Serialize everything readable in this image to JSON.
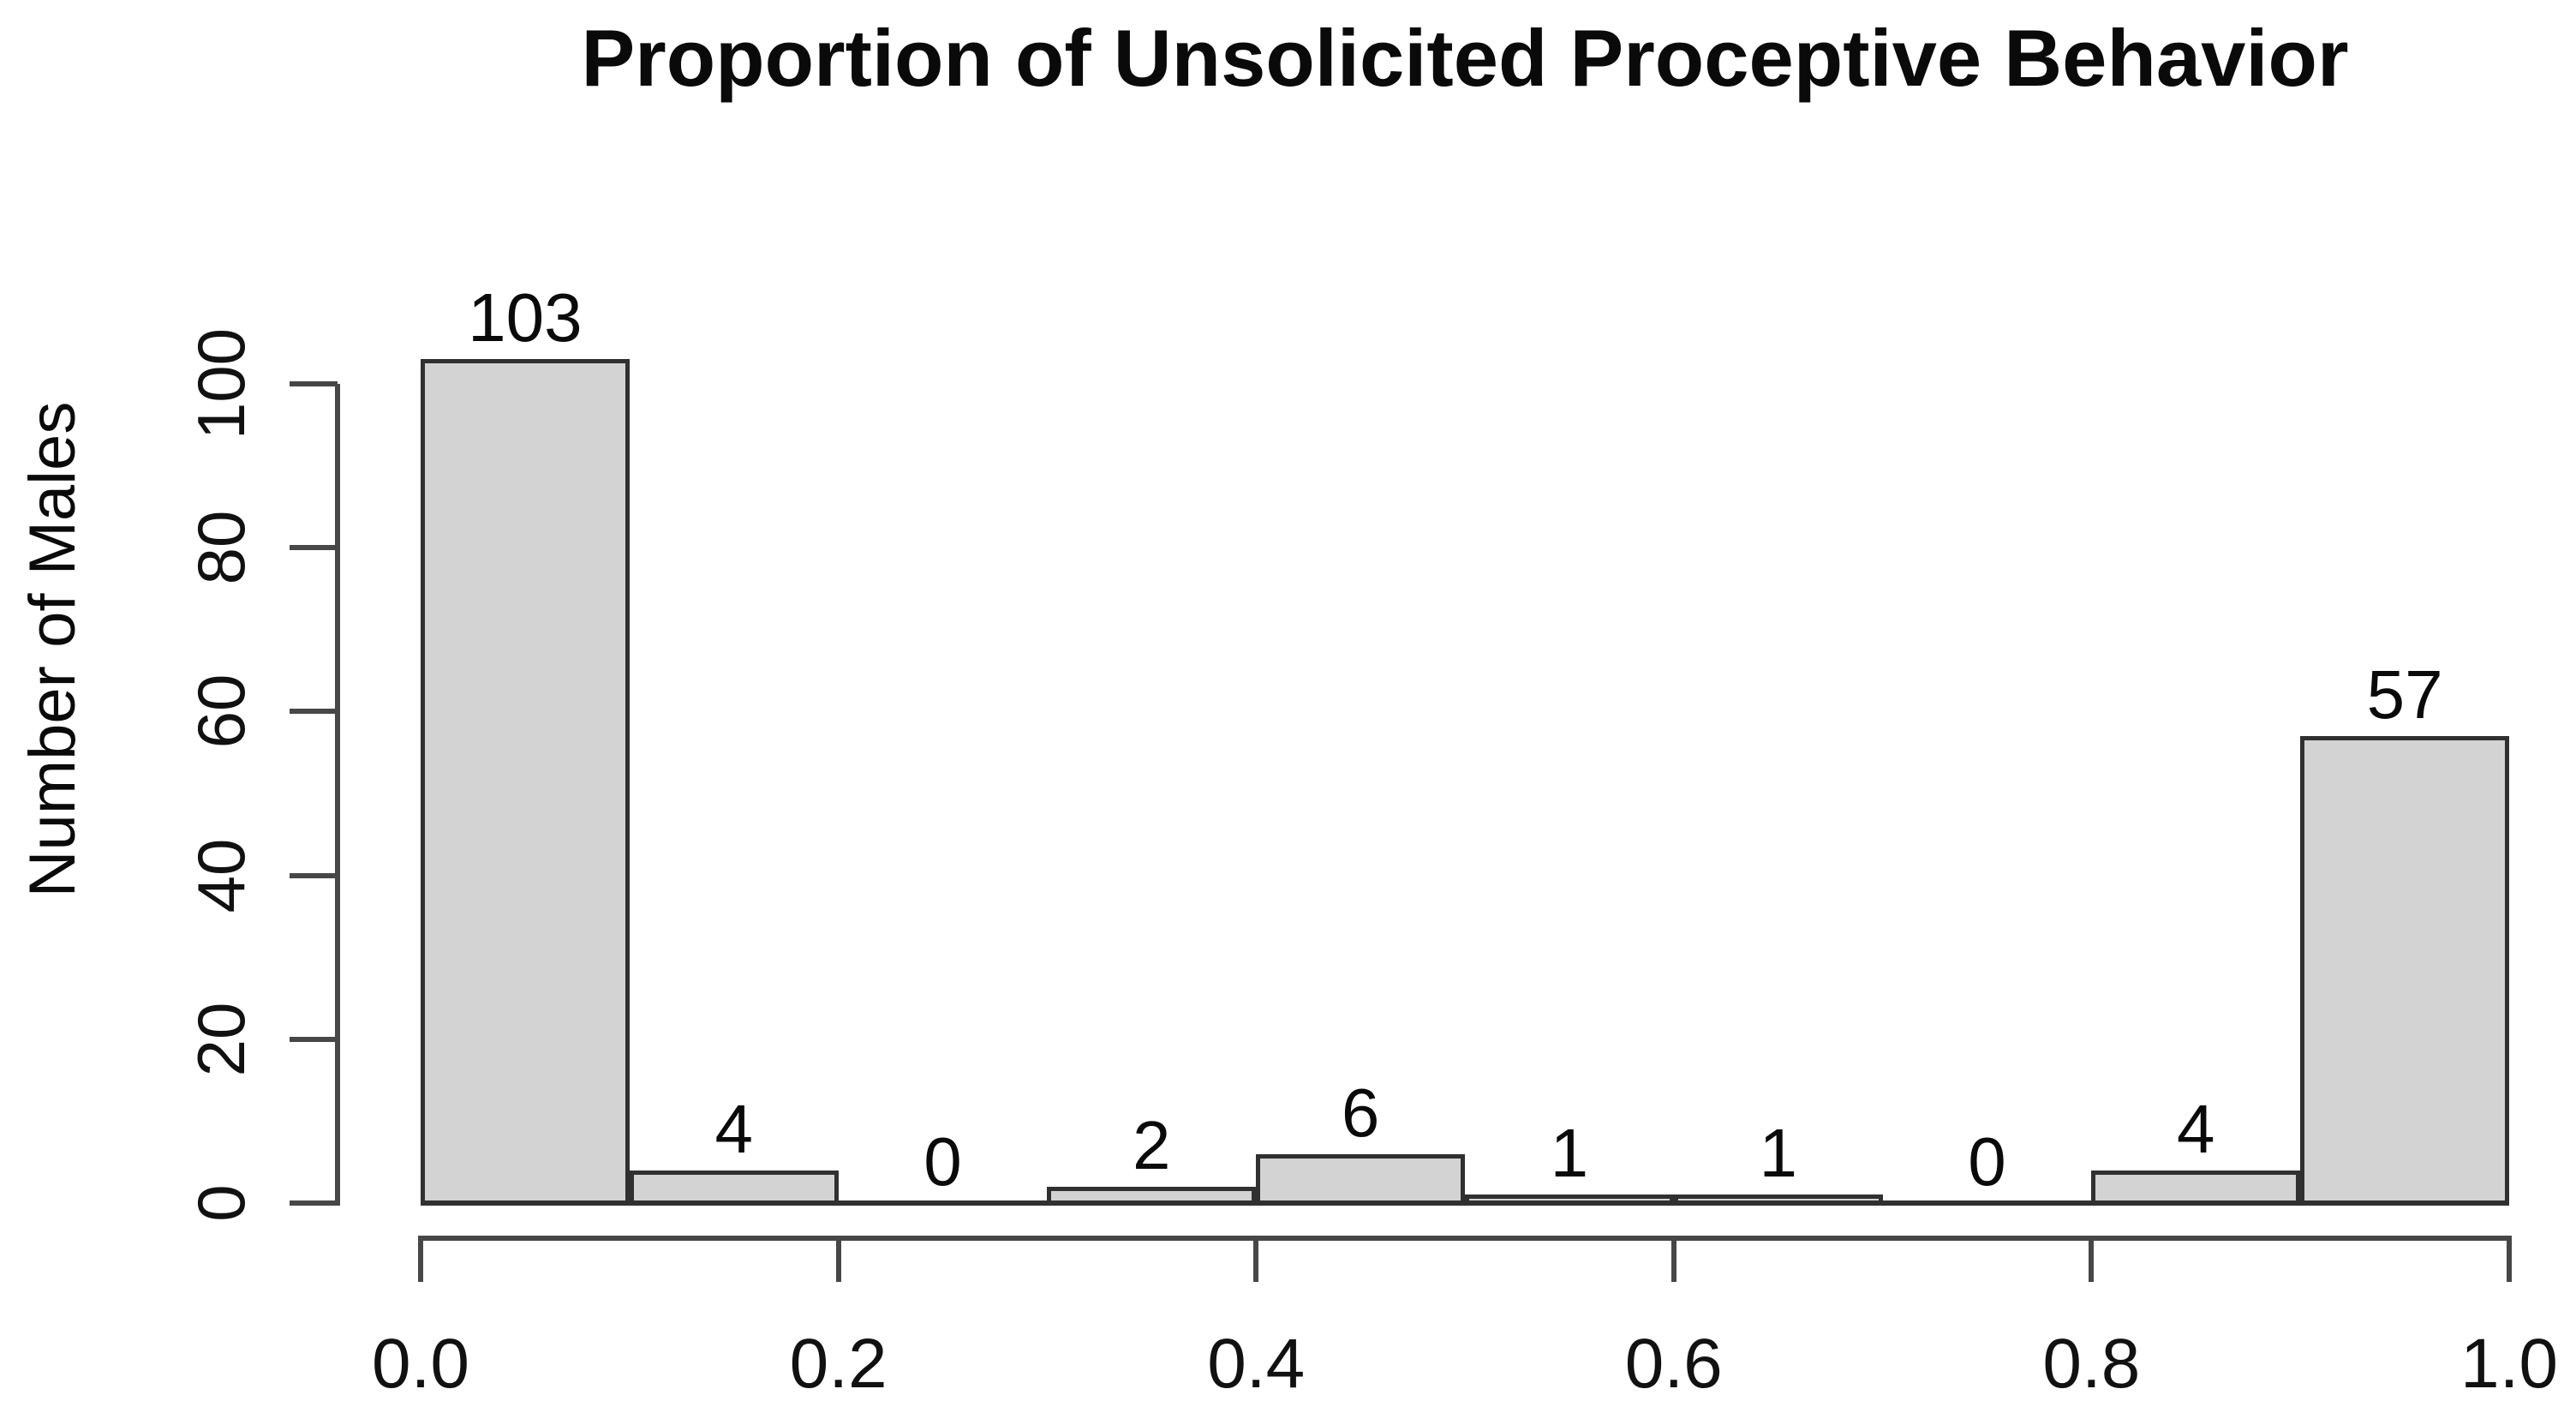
{
  "chart_data": {
    "type": "bar",
    "subtype": "histogram",
    "title": "Proportion of Unsolicited Proceptive Behavior",
    "xlabel": "",
    "ylabel": "Number of Males",
    "bin_edges": [
      0.0,
      0.1,
      0.2,
      0.3,
      0.4,
      0.5,
      0.6,
      0.7,
      0.8,
      0.9,
      1.0
    ],
    "categories": [
      "0.0-0.1",
      "0.1-0.2",
      "0.2-0.3",
      "0.3-0.4",
      "0.4-0.5",
      "0.5-0.6",
      "0.6-0.7",
      "0.7-0.8",
      "0.8-0.9",
      "0.9-1.0"
    ],
    "values": [
      103,
      4,
      0,
      2,
      6,
      1,
      1,
      0,
      4,
      57
    ],
    "bar_labels": [
      "103",
      "4",
      "0",
      "2",
      "6",
      "1",
      "1",
      "0",
      "4",
      "57"
    ],
    "x_tick_values": [
      0.0,
      0.2,
      0.4,
      0.6,
      0.8,
      1.0
    ],
    "x_tick_labels": [
      "0.0",
      "0.2",
      "0.4",
      "0.6",
      "0.8",
      "1.0"
    ],
    "y_tick_values": [
      0,
      20,
      40,
      60,
      80,
      100
    ],
    "y_tick_labels": [
      "0",
      "20",
      "40",
      "60",
      "80",
      "100"
    ],
    "xlim": [
      0.0,
      1.0
    ],
    "ylim": [
      0,
      100
    ],
    "grid": false,
    "legend": null,
    "bar_fill_color": "#d3d3d3",
    "bar_border_color": "#303030",
    "axis_color": "#474747",
    "text_color": "#000000",
    "background_color": "#ffffff"
  }
}
